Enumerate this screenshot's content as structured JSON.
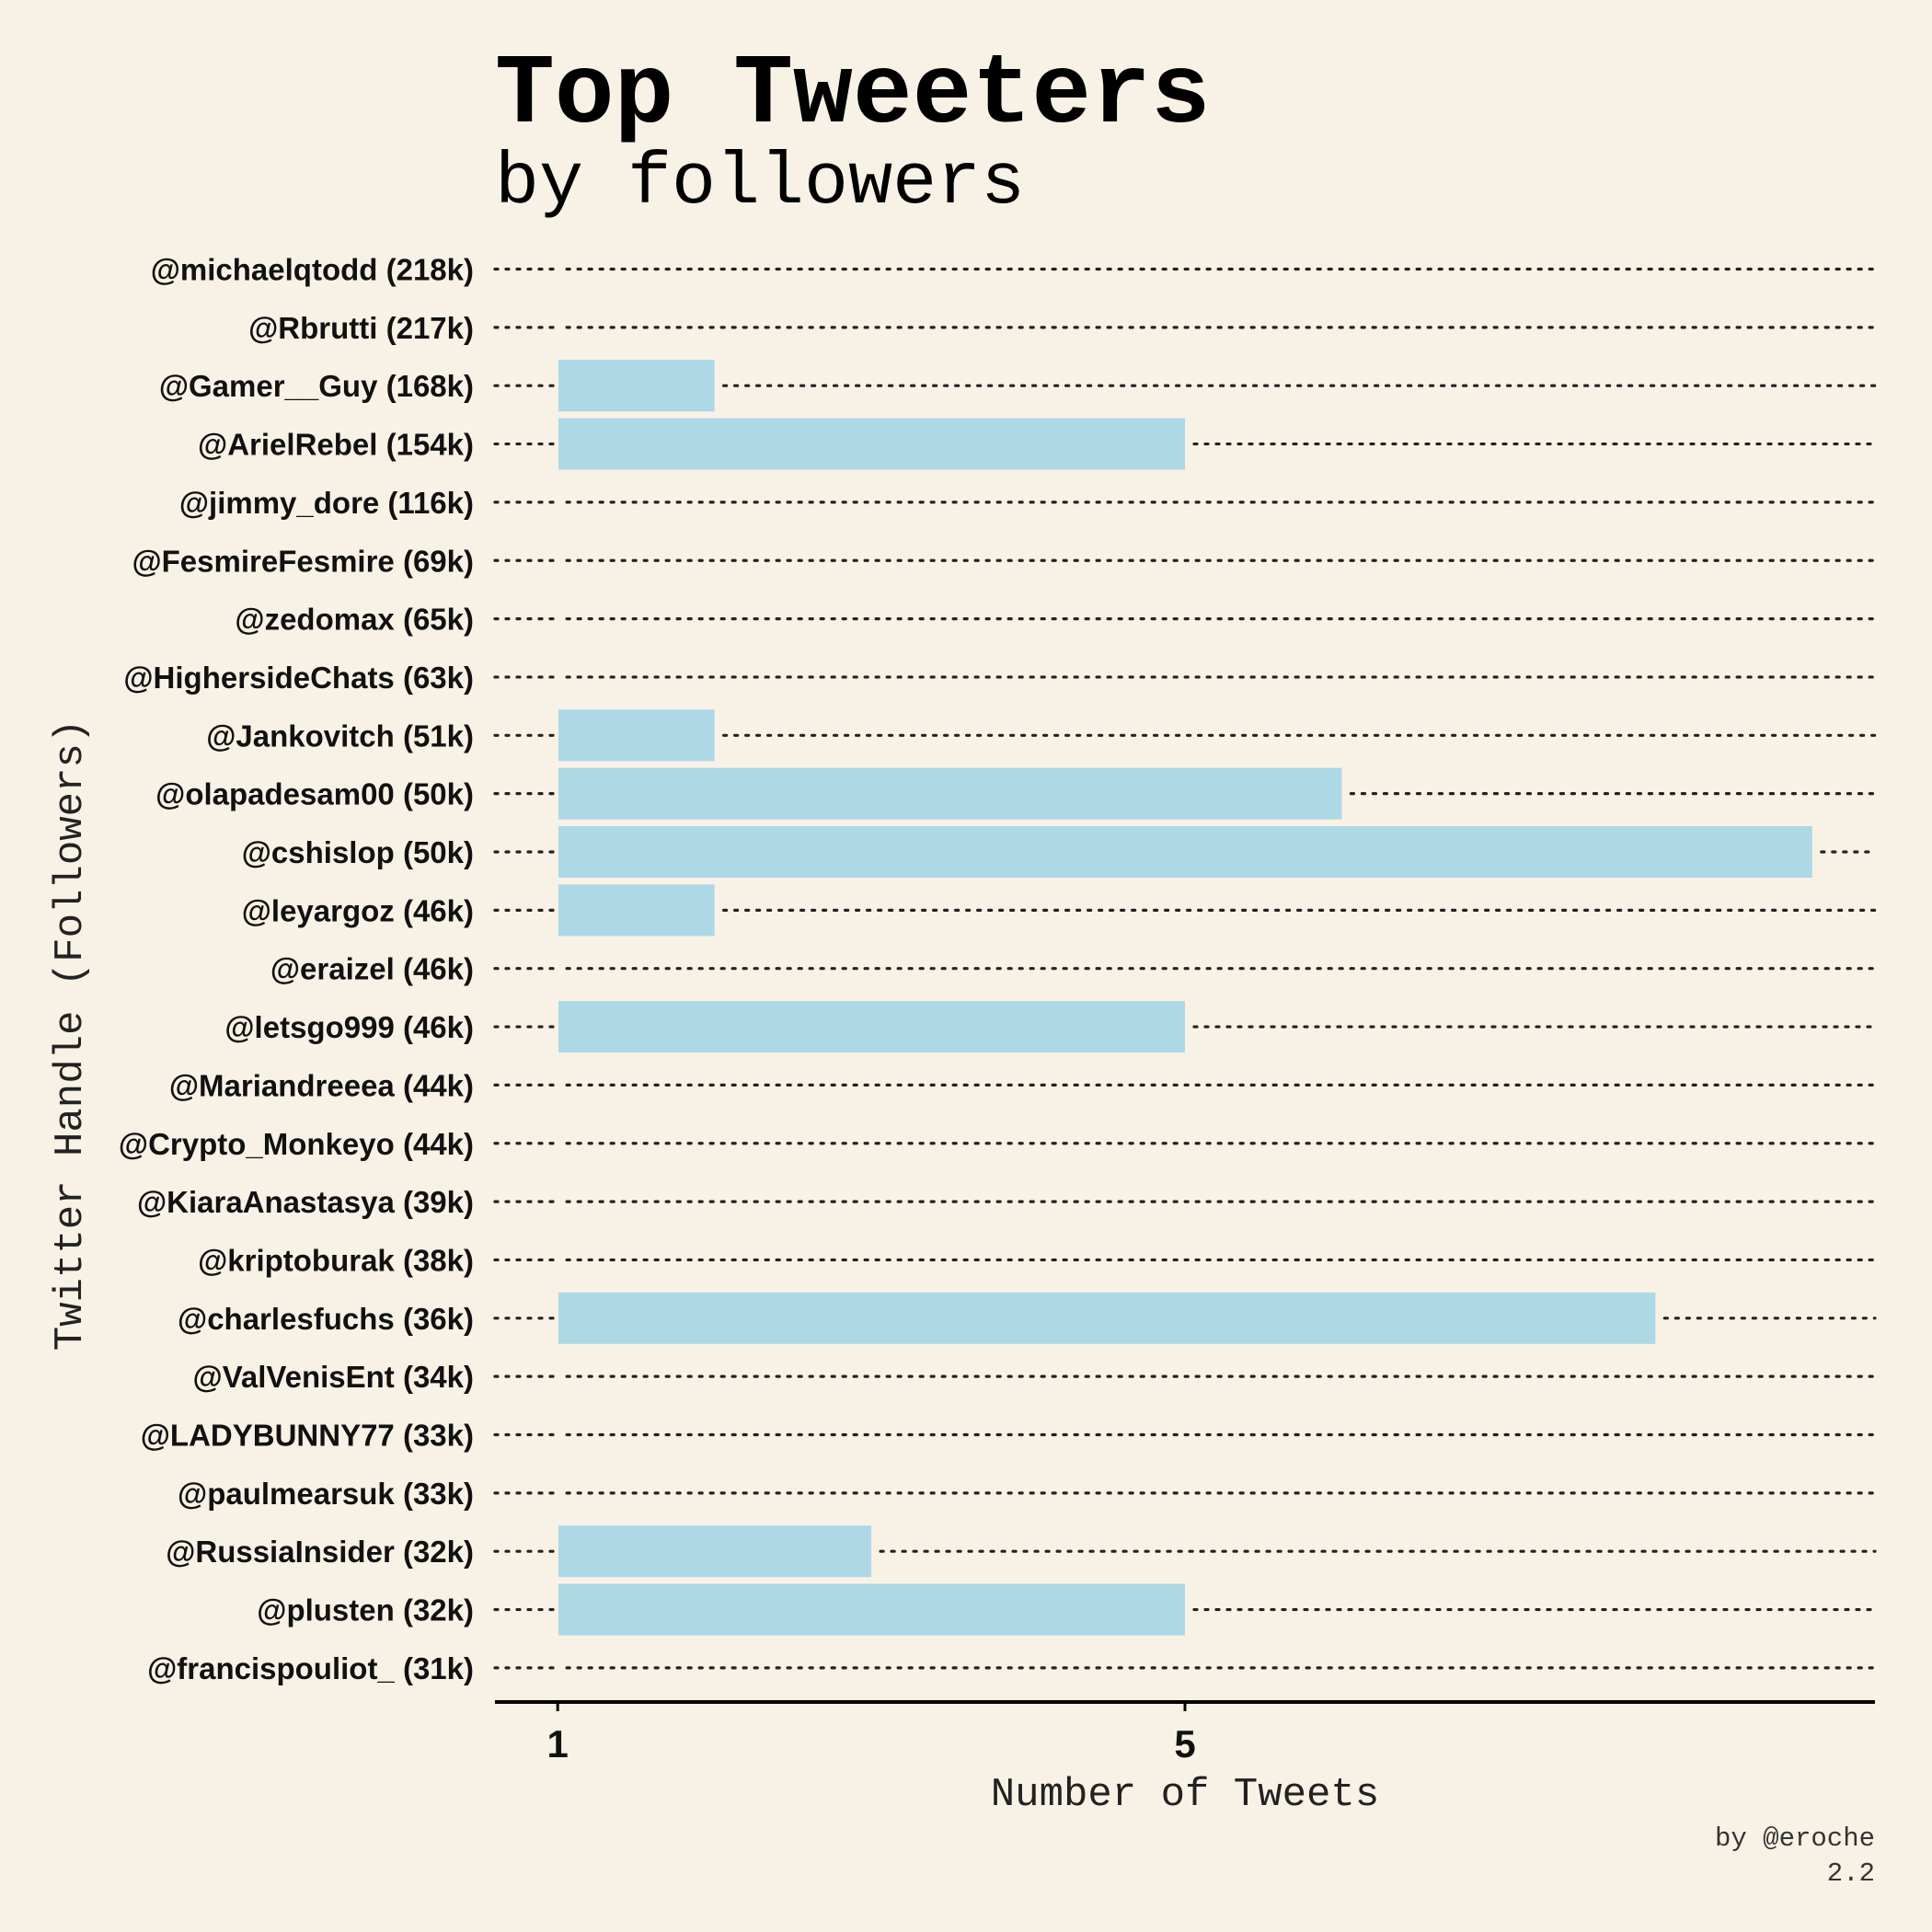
{
  "chart_data": {
    "type": "bar",
    "orientation": "horizontal",
    "title": "Top Tweeters",
    "subtitle": "by followers",
    "xlabel": "Number of Tweets",
    "ylabel": "Twitter Handle (Followers)",
    "credit": "by @eroche",
    "version": "2.2",
    "xticks": [
      1,
      5
    ],
    "xlim": [
      0.6,
      9.4
    ],
    "grid": "dotted horizontal guide per row",
    "colors": {
      "bar": "#add8e6",
      "background": "#f8f2e6",
      "text": "#111111"
    },
    "categories": [
      "@michaelqtodd (218k)",
      "@Rbrutti (217k)",
      "@Gamer__Guy (168k)",
      "@ArielRebel (154k)",
      "@jimmy_dore (116k)",
      "@FesmireFesmire (69k)",
      "@zedomax (65k)",
      "@HighersideChats (63k)",
      "@Jankovitch (51k)",
      "@olapadesam00 (50k)",
      "@cshislop (50k)",
      "@leyargoz (46k)",
      "@eraizel (46k)",
      "@letsgo999 (46k)",
      "@Mariandreeea (44k)",
      "@Crypto_Monkeyo (44k)",
      "@KiaraAnastasya (39k)",
      "@kriptoburak (38k)",
      "@charlesfuchs (36k)",
      "@ValVenisEnt (34k)",
      "@LADYBUNNY77 (33k)",
      "@paulmearsuk (33k)",
      "@RussiaInsider (32k)",
      "@plusten (32k)",
      "@francispouliot_ (31k)"
    ],
    "values": [
      1,
      1,
      2,
      5,
      1,
      1,
      1,
      1,
      2,
      6,
      9,
      2,
      1,
      5,
      1,
      1,
      1,
      1,
      8,
      1,
      1,
      1,
      3,
      5,
      1
    ]
  }
}
